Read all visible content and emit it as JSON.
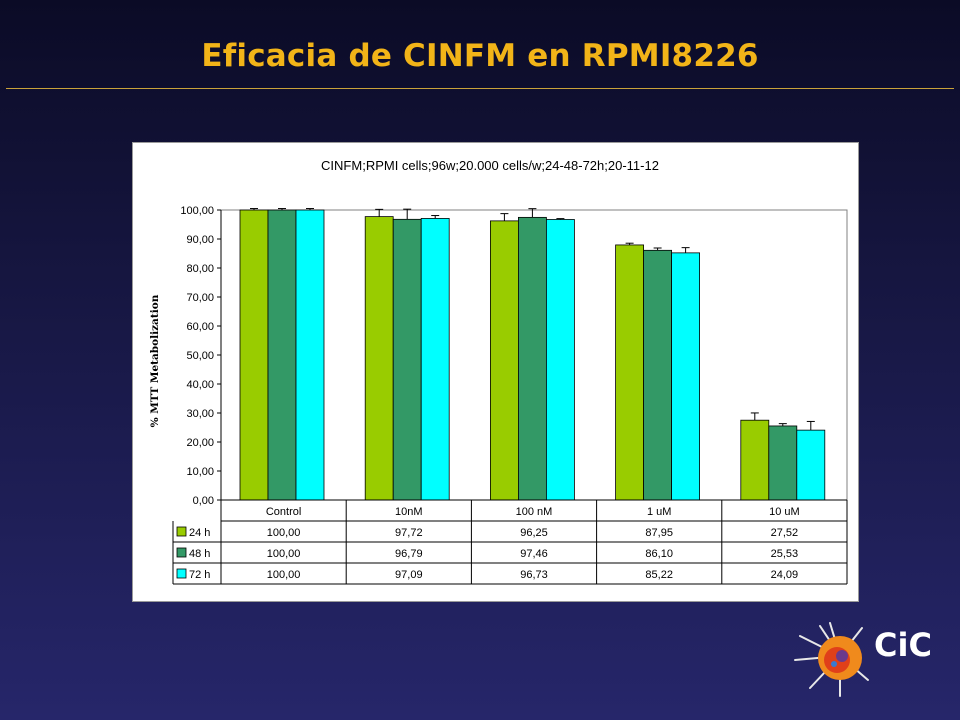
{
  "slide": {
    "title": "Eficacia de CINFM en RPMI8226"
  },
  "logo": {
    "text": "CiC",
    "icon": "cic-logo"
  },
  "colors": {
    "accent": "#f2b418",
    "s24": "#99cc00",
    "s48": "#339966",
    "s72": "#00ffff"
  },
  "chart_data": {
    "type": "bar",
    "title": "CINFM;RPMI cells;96w;20.000 cells/w;24-48-72h;20-11-12",
    "xlabel": "",
    "ylabel": "%  MTT Metabolization",
    "ylim": [
      0,
      100
    ],
    "yticks": [
      "0,00",
      "10,00",
      "20,00",
      "30,00",
      "40,00",
      "50,00",
      "60,00",
      "70,00",
      "80,00",
      "90,00",
      "100,00"
    ],
    "categories": [
      "Control",
      "10nM",
      "100 nM",
      "1 uM",
      "10 uM"
    ],
    "series": [
      {
        "name": "24 h",
        "color": "#99cc00",
        "values": [
          100.0,
          97.72,
          96.25,
          87.95,
          27.52
        ],
        "labels": [
          "100,00",
          "97,72",
          "96,25",
          "87,95",
          "27,52"
        ],
        "errors": [
          0.5,
          2.5,
          2.5,
          0.6,
          2.5
        ]
      },
      {
        "name": "48 h",
        "color": "#339966",
        "values": [
          100.0,
          96.79,
          97.46,
          86.1,
          25.53
        ],
        "labels": [
          "100,00",
          "96,79",
          "97,46",
          "86,10",
          "25,53"
        ],
        "errors": [
          0.5,
          3.5,
          3.0,
          0.8,
          0.8
        ]
      },
      {
        "name": "72 h",
        "color": "#00ffff",
        "values": [
          100.0,
          97.09,
          96.73,
          85.22,
          24.09
        ],
        "labels": [
          "100,00",
          "97,09",
          "96,73",
          "85,22",
          "24,09"
        ],
        "errors": [
          0.5,
          1.0,
          0.3,
          1.8,
          3.0
        ]
      }
    ],
    "grid": false,
    "legend": "data-table"
  }
}
